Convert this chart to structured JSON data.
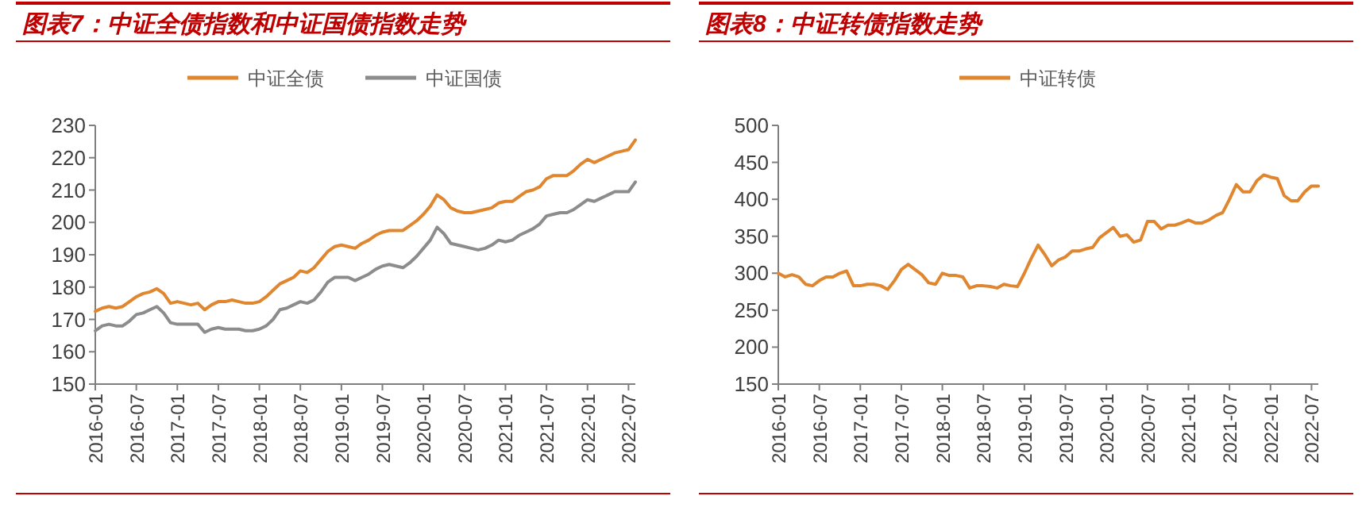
{
  "chart_data": [
    {
      "type": "line",
      "title": "图表7：中证全债指数和中证国债指数走势",
      "legend": "top",
      "grid": false,
      "line_style": "solid",
      "marker": "none",
      "x": [
        "2016-01",
        "2016-02",
        "2016-03",
        "2016-04",
        "2016-05",
        "2016-06",
        "2016-07",
        "2016-08",
        "2016-09",
        "2016-10",
        "2016-11",
        "2016-12",
        "2017-01",
        "2017-02",
        "2017-03",
        "2017-04",
        "2017-05",
        "2017-06",
        "2017-07",
        "2017-08",
        "2017-09",
        "2017-10",
        "2017-11",
        "2017-12",
        "2018-01",
        "2018-02",
        "2018-03",
        "2018-04",
        "2018-05",
        "2018-06",
        "2018-07",
        "2018-08",
        "2018-09",
        "2018-10",
        "2018-11",
        "2018-12",
        "2019-01",
        "2019-02",
        "2019-03",
        "2019-04",
        "2019-05",
        "2019-06",
        "2019-07",
        "2019-08",
        "2019-09",
        "2019-10",
        "2019-11",
        "2019-12",
        "2020-01",
        "2020-02",
        "2020-03",
        "2020-04",
        "2020-05",
        "2020-06",
        "2020-07",
        "2020-08",
        "2020-09",
        "2020-10",
        "2020-11",
        "2020-12",
        "2021-01",
        "2021-02",
        "2021-03",
        "2021-04",
        "2021-05",
        "2021-06",
        "2021-07",
        "2021-08",
        "2021-09",
        "2021-10",
        "2021-11",
        "2021-12",
        "2022-01",
        "2022-02",
        "2022-03",
        "2022-04",
        "2022-05",
        "2022-06",
        "2022-07",
        "2022-08"
      ],
      "series": [
        {
          "name": "中证全债",
          "color": "#e0862e",
          "values": [
            172.5,
            173.5,
            174,
            173.5,
            174,
            175.5,
            177,
            178,
            178.5,
            179.5,
            178,
            175,
            175.5,
            175,
            174.5,
            175,
            173,
            174.5,
            175.5,
            175.5,
            176,
            175.5,
            175,
            175,
            175.5,
            177,
            179,
            181,
            182,
            183,
            185,
            184.5,
            186,
            188.5,
            191,
            192.5,
            193,
            192.5,
            192,
            193.5,
            194.5,
            196,
            197,
            197.5,
            197.5,
            197.5,
            199,
            200.5,
            202.5,
            205,
            208.5,
            207,
            204.5,
            203.5,
            203,
            203,
            203.5,
            204,
            204.5,
            206,
            206.5,
            206.5,
            208,
            209.5,
            210,
            211,
            213.5,
            214.5,
            214.5,
            214.5,
            216,
            218,
            219.5,
            218.5,
            219.5,
            220.5,
            221.5,
            222,
            222.5,
            225.5
          ]
        },
        {
          "name": "中证国债",
          "color": "#8c8c8c",
          "values": [
            166.5,
            168,
            168.5,
            168,
            168,
            169.5,
            171.5,
            172,
            173,
            174,
            172,
            169,
            168.5,
            168.5,
            168.5,
            168.5,
            166,
            167,
            167.5,
            167,
            167,
            167,
            166.5,
            166.5,
            167,
            168,
            170,
            173,
            173.5,
            174.5,
            175.5,
            175,
            176,
            178.5,
            181.5,
            183,
            183,
            183,
            182,
            183,
            184,
            185.5,
            186.5,
            187,
            186.5,
            186,
            187.5,
            189.5,
            192,
            194.5,
            198.5,
            196.5,
            193.5,
            193,
            192.5,
            192,
            191.5,
            192,
            193,
            194.5,
            194,
            194.5,
            196,
            197,
            198,
            199.5,
            202,
            202.5,
            203,
            203,
            204,
            205.5,
            207,
            206.5,
            207.5,
            208.5,
            209.5,
            209.5,
            209.5,
            212.5
          ]
        }
      ],
      "xlim": [
        "2016-01",
        "2022-08"
      ],
      "xticks": [
        "2016-01",
        "2016-07",
        "2017-01",
        "2017-07",
        "2018-01",
        "2018-07",
        "2019-01",
        "2019-07",
        "2020-01",
        "2020-07",
        "2021-01",
        "2021-07",
        "2022-01",
        "2022-07"
      ],
      "ylim": [
        150,
        230
      ],
      "yticks": [
        150,
        160,
        170,
        180,
        190,
        200,
        210,
        220,
        230
      ]
    },
    {
      "type": "line",
      "title": "图表8：中证转债指数走势",
      "legend": "top",
      "grid": false,
      "line_style": "solid",
      "marker": "none",
      "x": [
        "2016-01",
        "2016-02",
        "2016-03",
        "2016-04",
        "2016-05",
        "2016-06",
        "2016-07",
        "2016-08",
        "2016-09",
        "2016-10",
        "2016-11",
        "2016-12",
        "2017-01",
        "2017-02",
        "2017-03",
        "2017-04",
        "2017-05",
        "2017-06",
        "2017-07",
        "2017-08",
        "2017-09",
        "2017-10",
        "2017-11",
        "2017-12",
        "2018-01",
        "2018-02",
        "2018-03",
        "2018-04",
        "2018-05",
        "2018-06",
        "2018-07",
        "2018-08",
        "2018-09",
        "2018-10",
        "2018-11",
        "2018-12",
        "2019-01",
        "2019-02",
        "2019-03",
        "2019-04",
        "2019-05",
        "2019-06",
        "2019-07",
        "2019-08",
        "2019-09",
        "2019-10",
        "2019-11",
        "2019-12",
        "2020-01",
        "2020-02",
        "2020-03",
        "2020-04",
        "2020-05",
        "2020-06",
        "2020-07",
        "2020-08",
        "2020-09",
        "2020-10",
        "2020-11",
        "2020-12",
        "2021-01",
        "2021-02",
        "2021-03",
        "2021-04",
        "2021-05",
        "2021-06",
        "2021-07",
        "2021-08",
        "2021-09",
        "2021-10",
        "2021-11",
        "2021-12",
        "2022-01",
        "2022-02",
        "2022-03",
        "2022-04",
        "2022-05",
        "2022-06",
        "2022-07",
        "2022-08"
      ],
      "series": [
        {
          "name": "中证转债",
          "color": "#e0862e",
          "values": [
            300,
            295,
            298,
            295,
            285,
            283,
            290,
            295,
            295,
            300,
            303,
            283,
            283,
            285,
            285,
            283,
            278,
            290,
            305,
            312,
            305,
            298,
            287,
            285,
            300,
            297,
            297,
            295,
            280,
            283,
            283,
            282,
            280,
            285,
            283,
            282,
            300,
            320,
            338,
            325,
            310,
            318,
            322,
            330,
            330,
            333,
            335,
            348,
            355,
            362,
            350,
            352,
            342,
            345,
            370,
            370,
            360,
            365,
            365,
            368,
            372,
            368,
            368,
            372,
            378,
            382,
            400,
            420,
            410,
            410,
            425,
            433,
            430,
            428,
            405,
            398,
            398,
            410,
            418,
            418
          ]
        }
      ],
      "xlim": [
        "2016-01",
        "2022-08"
      ],
      "xticks": [
        "2016-01",
        "2016-07",
        "2017-01",
        "2017-07",
        "2018-01",
        "2018-07",
        "2019-01",
        "2019-07",
        "2020-01",
        "2020-07",
        "2021-01",
        "2021-07",
        "2022-01",
        "2022-07"
      ],
      "ylim": [
        150,
        500
      ],
      "yticks": [
        150,
        200,
        250,
        300,
        350,
        400,
        450,
        500
      ]
    }
  ]
}
